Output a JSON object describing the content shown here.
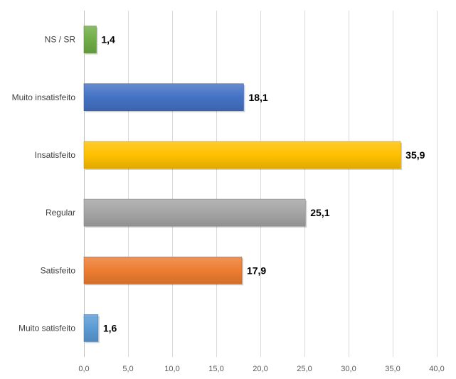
{
  "chart_data": {
    "type": "bar",
    "orientation": "horizontal",
    "categories": [
      "NS / SR",
      "Muito insatisfeito",
      "Insatisfeito",
      "Regular",
      "Satisfeito",
      "Muito satisfeito"
    ],
    "values": [
      1.4,
      18.1,
      35.9,
      25.1,
      17.9,
      1.6
    ],
    "data_labels": [
      "1,4",
      "18,1",
      "35,9",
      "25,1",
      "17,9",
      "1,6"
    ],
    "colors": [
      "#70ad47",
      "#4472c4",
      "#ffc000",
      "#a5a5a5",
      "#ed7d31",
      "#5b9bd5"
    ],
    "xlim": [
      0,
      40
    ],
    "x_ticks": [
      0,
      5,
      10,
      15,
      20,
      25,
      30,
      35,
      40
    ],
    "x_tick_labels": [
      "0,0",
      "5,0",
      "10,0",
      "15,0",
      "20,0",
      "25,0",
      "30,0",
      "35,0",
      "40,0"
    ],
    "grid": true,
    "legend": "none",
    "title": "",
    "xlabel": "",
    "ylabel": ""
  }
}
